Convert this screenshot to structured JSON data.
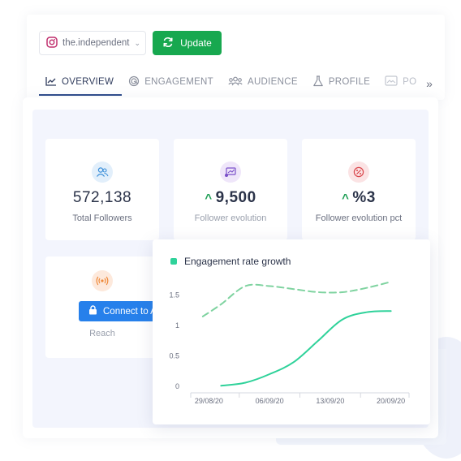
{
  "header": {
    "account_name": "the.independent",
    "update_label": "Update"
  },
  "tabs": [
    {
      "label": "OVERVIEW",
      "icon": "line-chart-icon",
      "active": true
    },
    {
      "label": "ENGAGEMENT",
      "icon": "engagement-icon",
      "active": false
    },
    {
      "label": "AUDIENCE",
      "icon": "audience-icon",
      "active": false
    },
    {
      "label": "PROFILE",
      "icon": "flask-icon",
      "active": false
    },
    {
      "label": "PO",
      "icon": "posts-icon",
      "active": false
    }
  ],
  "stats": {
    "total_followers": {
      "value": "572,138",
      "label": "Total Followers",
      "icon": "users-icon",
      "color": "#3b8fd9"
    },
    "follower_evolution": {
      "value": "9,500",
      "label": "Follower evolution",
      "icon": "growth-icon",
      "color": "#7a4fc9"
    },
    "follower_evolution_pct": {
      "value": "%3",
      "label": "Follower evolution pct",
      "icon": "percent-icon",
      "color": "#d9464b"
    },
    "reach": {
      "button_label": "Connect to A",
      "label": "Reach",
      "icon": "reach-icon",
      "color": "#ef8a3b"
    }
  },
  "colors": {
    "accent_green": "#17a84f",
    "connect_blue": "#2680eb",
    "series_solid": "#2fd29a",
    "series_dashed": "#7fd3a0"
  },
  "chart_data": {
    "type": "line",
    "title": "Engagement rate growth",
    "x": [
      "29/08/20",
      "06/09/20",
      "13/09/20",
      "20/09/20"
    ],
    "ylim": [
      0,
      1.75
    ],
    "yticks": [
      "0",
      "0.5",
      "1",
      "1.5"
    ],
    "series": [
      {
        "name": "Engagement rate growth",
        "style": "solid",
        "points": [
          [
            0.2,
            0.01
          ],
          [
            0.6,
            0.06
          ],
          [
            1.0,
            0.2
          ],
          [
            1.4,
            0.4
          ],
          [
            1.8,
            0.75
          ],
          [
            2.2,
            1.1
          ],
          [
            2.6,
            1.22
          ],
          [
            3.0,
            1.24
          ]
        ]
      },
      {
        "style": "dashed",
        "points": [
          [
            -0.1,
            1.15
          ],
          [
            0.2,
            1.35
          ],
          [
            0.6,
            1.65
          ],
          [
            1.0,
            1.65
          ],
          [
            1.4,
            1.6
          ],
          [
            1.8,
            1.55
          ],
          [
            2.2,
            1.55
          ],
          [
            2.6,
            1.62
          ],
          [
            3.0,
            1.72
          ]
        ]
      }
    ]
  }
}
